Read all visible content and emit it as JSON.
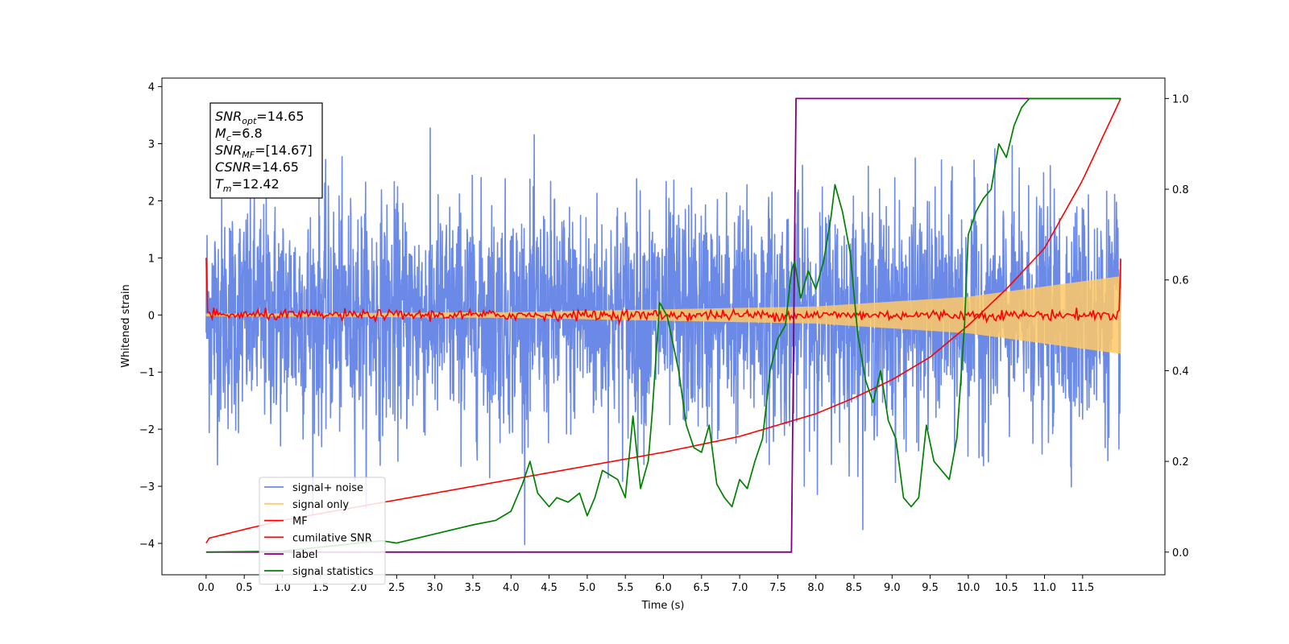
{
  "chart_data": {
    "type": "line",
    "title": "",
    "xlabel": "Time (s)",
    "ylabel": "Whitened strain",
    "xlim": [
      -0.58,
      12.58
    ],
    "ylim": [
      -4.55,
      4.15
    ],
    "y2lim": [
      -0.05,
      1.045
    ],
    "xticks": [
      0.0,
      0.5,
      1.0,
      1.5,
      2.0,
      2.5,
      3.0,
      3.5,
      4.0,
      4.5,
      5.0,
      5.5,
      6.0,
      6.5,
      7.0,
      7.5,
      8.0,
      8.5,
      9.0,
      9.5,
      10.0,
      10.5,
      11.0,
      11.5
    ],
    "xtick_labels": [
      "0.0",
      "0.5",
      "1.0",
      "1.5",
      "2.0",
      "2.5",
      "3.0",
      "3.5",
      "4.0",
      "4.5",
      "5.0",
      "5.5",
      "6.0",
      "6.5",
      "7.0",
      "7.5",
      "8.0",
      "8.5",
      "9.0",
      "9.5",
      "10.0",
      "10.5",
      "11.0",
      "11.5"
    ],
    "yticks": [
      4,
      3,
      2,
      1,
      0,
      -1,
      -2,
      -3,
      -4
    ],
    "ytick_labels": [
      "4",
      "3",
      "2",
      "1",
      "0",
      "−1",
      "−2",
      "−3",
      "−4"
    ],
    "y2ticks": [
      1.0,
      0.8,
      0.6,
      0.4,
      0.2,
      0.0
    ],
    "y2tick_labels": [
      "1.0",
      "0.8",
      "0.6",
      "0.4",
      "0.2",
      "0.0"
    ],
    "legend_placement": "lower-left",
    "grid": false,
    "series": [
      {
        "name": "signal+ noise",
        "color": "#6b89e6",
        "axis": "left",
        "kind": "noise",
        "t_range": [
          0,
          12
        ],
        "amplitude_sigma": 1.0
      },
      {
        "name": "signal only",
        "color": "#ffc966",
        "axis": "left",
        "kind": "chirp",
        "t_range": [
          0,
          12
        ],
        "envelope": {
          "t": [
            0,
            4,
            8,
            10,
            12
          ],
          "a": [
            0.02,
            0.05,
            0.15,
            0.32,
            0.68
          ]
        }
      },
      {
        "name": "MF",
        "color": "#ff0000",
        "axis": "left",
        "kind": "mf",
        "t_range": [
          0,
          12
        ],
        "endpoints": {
          "start": 1.0,
          "end": 0.98
        }
      },
      {
        "name": "cumilative SNR",
        "color": "#ff0000",
        "axis": "right",
        "x": [
          0,
          0.02,
          0.5,
          1,
          2,
          3,
          4,
          5,
          6,
          7,
          7.5,
          8,
          8.5,
          9,
          9.5,
          10,
          10.5,
          11,
          11.5,
          12
        ],
        "y": [
          0.02,
          0.03,
          0.05,
          0.07,
          0.1,
          0.13,
          0.16,
          0.19,
          0.22,
          0.255,
          0.28,
          0.305,
          0.34,
          0.38,
          0.43,
          0.5,
          0.58,
          0.67,
          0.82,
          1.0
        ]
      },
      {
        "name": "label",
        "color": "#800080",
        "axis": "right",
        "x": [
          0,
          7.68,
          7.74,
          12
        ],
        "y": [
          0,
          0,
          1,
          1
        ]
      },
      {
        "name": "signal statistics",
        "color": "#008000",
        "axis": "right",
        "x": [
          0,
          1,
          2,
          2.3,
          2.5,
          3,
          3.5,
          3.8,
          4.0,
          4.15,
          4.25,
          4.35,
          4.5,
          4.6,
          4.75,
          4.9,
          5.0,
          5.1,
          5.2,
          5.3,
          5.4,
          5.5,
          5.6,
          5.7,
          5.8,
          5.85,
          5.95,
          6.05,
          6.2,
          6.3,
          6.4,
          6.5,
          6.6,
          6.7,
          6.8,
          6.9,
          7.0,
          7.1,
          7.2,
          7.3,
          7.4,
          7.5,
          7.6,
          7.68,
          7.72,
          7.8,
          7.9,
          8.0,
          8.1,
          8.2,
          8.25,
          8.35,
          8.45,
          8.55,
          8.65,
          8.75,
          8.85,
          8.95,
          9.05,
          9.15,
          9.25,
          9.35,
          9.45,
          9.55,
          9.65,
          9.75,
          9.85,
          9.95,
          10.0,
          10.1,
          10.2,
          10.3,
          10.4,
          10.5,
          10.6,
          10.7,
          10.8,
          10.9,
          11.0,
          11.5,
          12.0
        ],
        "y": [
          0.0,
          0.002,
          0.02,
          0.025,
          0.02,
          0.04,
          0.06,
          0.07,
          0.09,
          0.15,
          0.2,
          0.13,
          0.1,
          0.12,
          0.11,
          0.13,
          0.08,
          0.12,
          0.18,
          0.17,
          0.16,
          0.12,
          0.3,
          0.14,
          0.2,
          0.3,
          0.55,
          0.52,
          0.4,
          0.28,
          0.23,
          0.22,
          0.28,
          0.15,
          0.12,
          0.1,
          0.16,
          0.14,
          0.2,
          0.25,
          0.4,
          0.47,
          0.5,
          0.62,
          0.64,
          0.56,
          0.62,
          0.58,
          0.64,
          0.74,
          0.81,
          0.75,
          0.66,
          0.48,
          0.38,
          0.33,
          0.4,
          0.29,
          0.25,
          0.12,
          0.1,
          0.12,
          0.28,
          0.2,
          0.18,
          0.16,
          0.25,
          0.5,
          0.7,
          0.75,
          0.78,
          0.8,
          0.9,
          0.87,
          0.94,
          0.98,
          1.0,
          1.0,
          1.0,
          1.0,
          1.0
        ]
      }
    ],
    "annotation": {
      "lines": [
        {
          "base": "SNR",
          "sub": "opt",
          "rest": "=14.65"
        },
        {
          "base": "M",
          "sub": "c",
          "rest": "=6.8"
        },
        {
          "base": "SNR",
          "sub": "MF",
          "rest": "=[14.67]"
        },
        {
          "base": "CSNR",
          "sub": "",
          "rest": "=14.65"
        },
        {
          "base": "T",
          "sub": "m",
          "rest": "=12.42"
        }
      ]
    }
  }
}
